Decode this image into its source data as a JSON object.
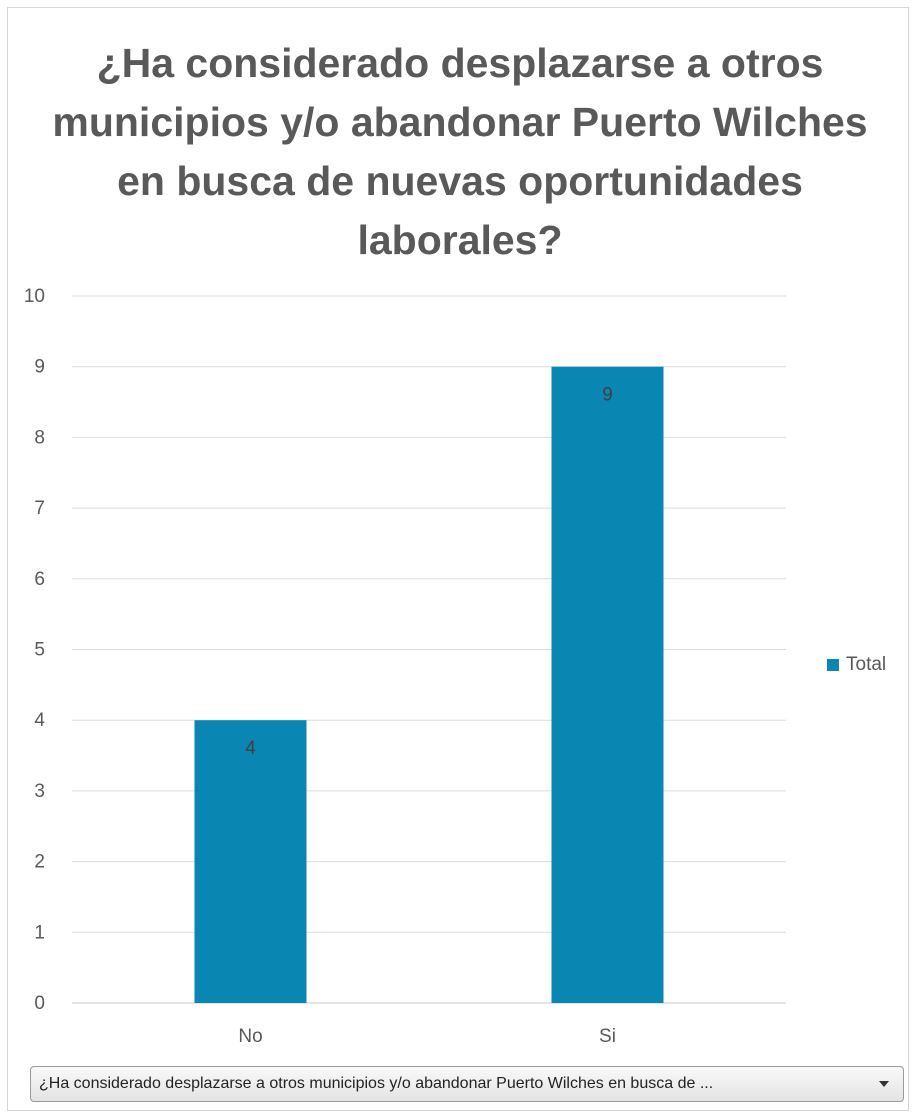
{
  "chart_data": {
    "type": "bar",
    "title": "¿Ha considerado desplazarse a otros municipios y/o abandonar Puerto Wilches en busca de nuevas oportunidades laborales?",
    "categories": [
      "No",
      "Si"
    ],
    "series": [
      {
        "name": "Total",
        "values": [
          4,
          9
        ],
        "color": "#0a86b3"
      }
    ],
    "data_labels": [
      "4",
      "9"
    ],
    "ylim": [
      0,
      10
    ],
    "yticks": [
      "0",
      "1",
      "2",
      "3",
      "4",
      "5",
      "6",
      "7",
      "8",
      "9",
      "10"
    ],
    "grid": true,
    "legend_position": "right"
  },
  "filter": {
    "label": "¿Ha considerado desplazarse a otros municipios y/o abandonar Puerto Wilches en busca de ..."
  }
}
